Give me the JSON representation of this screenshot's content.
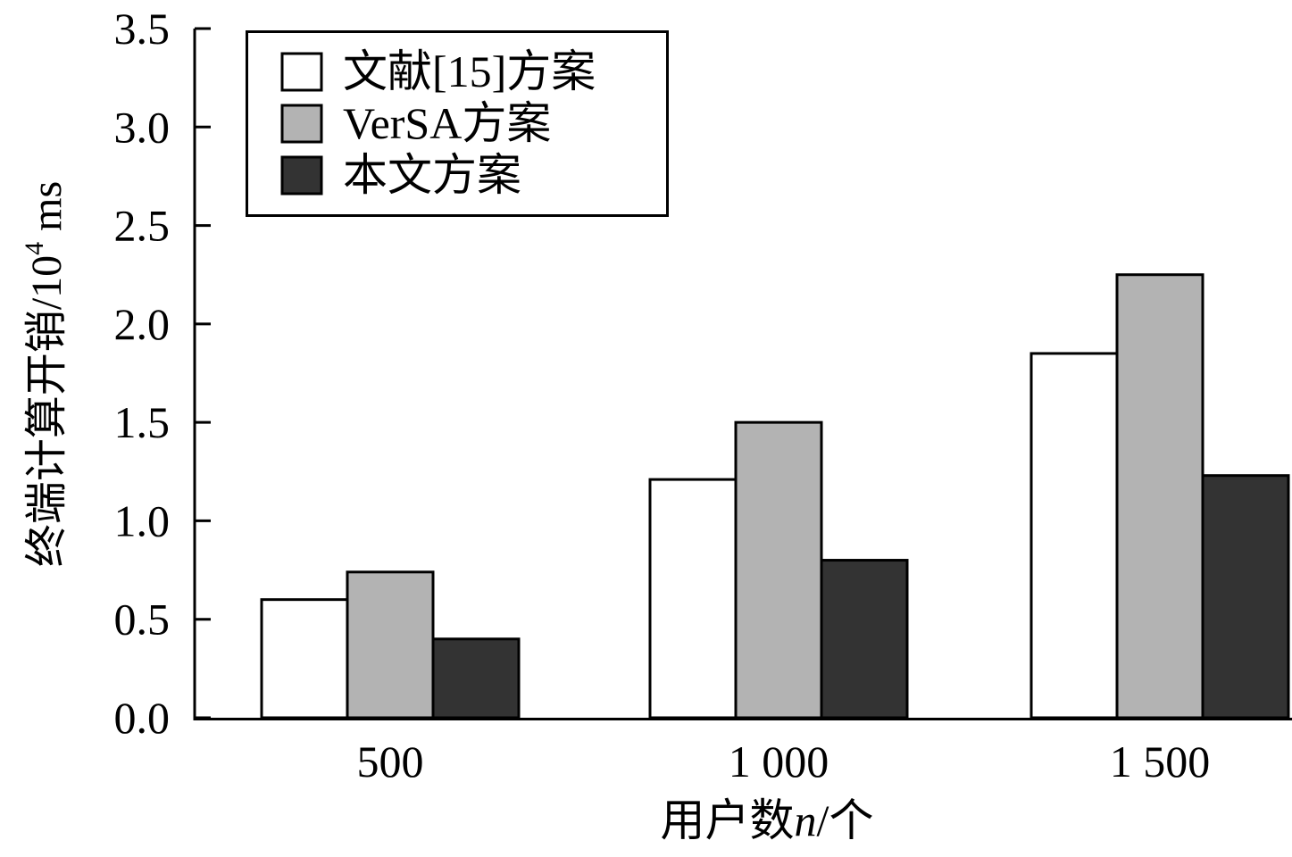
{
  "chart_data": {
    "type": "bar",
    "categories": [
      "500",
      "1 000",
      "1 500"
    ],
    "series": [
      {
        "name": "文献[15]方案",
        "color": "#ffffff",
        "values": [
          0.6,
          1.21,
          1.85
        ]
      },
      {
        "name": "VerSA方案",
        "color": "#b3b3b3",
        "values": [
          0.74,
          1.5,
          2.25
        ]
      },
      {
        "name": "本文方案",
        "color": "#333333",
        "values": [
          0.4,
          0.8,
          1.23
        ]
      }
    ],
    "xlabel_parts": {
      "prefix": "用户数",
      "variable": "n",
      "suffix": "/个"
    },
    "ylabel_parts": {
      "prefix": "终端计算开销/10",
      "exponent": "4",
      "suffix": " ms"
    },
    "yticks": [
      "0.0",
      "0.5",
      "1.0",
      "1.5",
      "2.0",
      "2.5",
      "3.0",
      "3.5"
    ],
    "ylim": [
      0,
      3.5
    ],
    "grid": false,
    "legend_position": "top-left"
  }
}
